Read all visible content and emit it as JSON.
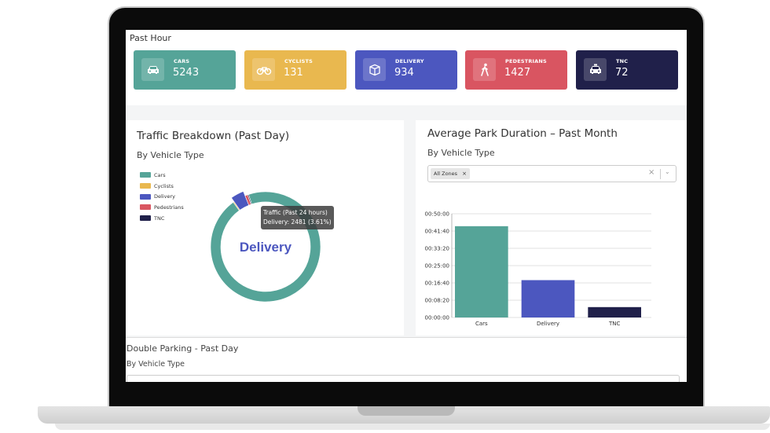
{
  "past_hour": {
    "title": "Past Hour",
    "cards": [
      {
        "label": "CARS",
        "value": "5243",
        "color": "#55a498",
        "icon": "car-icon"
      },
      {
        "label": "CYCLISTS",
        "value": "131",
        "color": "#e9b84f",
        "icon": "bicycle-icon"
      },
      {
        "label": "DELIVERY",
        "value": "934",
        "color": "#4c57bf",
        "icon": "package-icon"
      },
      {
        "label": "PEDESTRIANS",
        "value": "1427",
        "color": "#d95561",
        "icon": "pedestrian-icon"
      },
      {
        "label": "TNC",
        "value": "72",
        "color": "#20204a",
        "icon": "taxi-icon"
      }
    ]
  },
  "traffic": {
    "title": "Traffic Breakdown (Past Day)",
    "subtitle": "By Vehicle Type",
    "legend": [
      {
        "label": "Cars",
        "color": "#55a498"
      },
      {
        "label": "Cyclists",
        "color": "#e9b84f"
      },
      {
        "label": "Delivery",
        "color": "#4c57bf"
      },
      {
        "label": "Pedestrians",
        "color": "#d95561"
      },
      {
        "label": "TNC",
        "color": "#20204a"
      }
    ],
    "center_label": "Delivery",
    "tooltip_title": "Traffic (Past 24 hours)",
    "tooltip_value": "Delivery: 2481 (3.61%)"
  },
  "park": {
    "title": "Average Park Duration – Past Month",
    "subtitle": "By Vehicle Type",
    "filter_chip": "All Zones",
    "chip_remove": "×",
    "clear": "×",
    "chevron": "⌄"
  },
  "double_parking": {
    "title": "Double Parking - Past Day",
    "subtitle": "By Vehicle Type"
  },
  "chart_data": [
    {
      "type": "pie",
      "title": "Traffic Breakdown (Past Day)",
      "categories": [
        "Cars",
        "Cyclists",
        "Delivery",
        "Pedestrians",
        "TNC"
      ],
      "values": [
        95.0,
        0.3,
        3.61,
        0.8,
        0.29
      ],
      "highlight": "Delivery",
      "legend": "top-left"
    },
    {
      "type": "bar",
      "title": "Average Park Duration – Past Month",
      "categories": [
        "Cars",
        "Delivery",
        "TNC"
      ],
      "values_seconds": [
        2640,
        1080,
        300
      ],
      "colors": [
        "#55a498",
        "#4c57bf",
        "#20204a"
      ],
      "yticks": [
        "00:00:00",
        "00:08:20",
        "00:16:40",
        "00:25:00",
        "00:33:20",
        "00:41:40",
        "00:50:00"
      ],
      "ylim": [
        0,
        3000
      ],
      "grid": true
    }
  ]
}
